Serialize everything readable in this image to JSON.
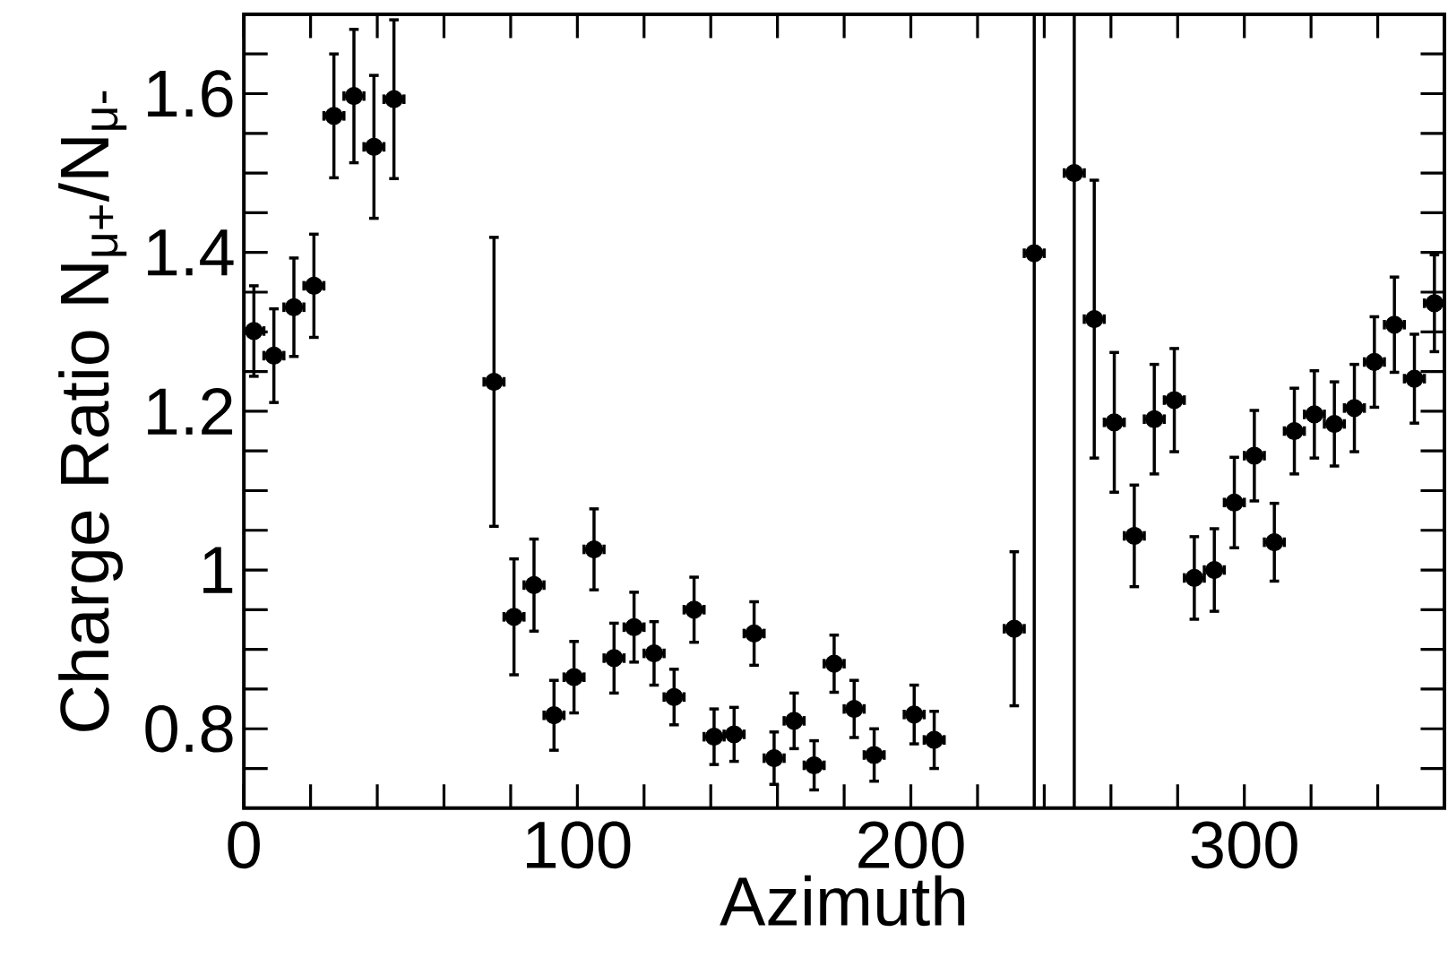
{
  "chart_data": {
    "type": "scatter",
    "xlabel": "Azimuth",
    "ylabel": "Charge Ratio N$_{μ+}$/N$_{μ-}$",
    "xlim": [
      0,
      360
    ],
    "ylim": [
      0.7,
      1.7
    ],
    "xticks": [
      0,
      {
        "value": 20,
        "label": null
      },
      {
        "value": 40,
        "label": null
      },
      {
        "value": 60,
        "label": null
      },
      {
        "value": 80,
        "label": null
      },
      100,
      {
        "value": 120,
        "label": null
      },
      {
        "value": 140,
        "label": null
      },
      {
        "value": 160,
        "label": null
      },
      {
        "value": 180,
        "label": null
      },
      200,
      {
        "value": 220,
        "label": null
      },
      {
        "value": 240,
        "label": null
      },
      {
        "value": 260,
        "label": null
      },
      {
        "value": 280,
        "label": null
      },
      300,
      {
        "value": 320,
        "label": null
      },
      {
        "value": 340,
        "label": null
      }
    ],
    "yticks": [
      {
        "value": 0.75,
        "label": null
      },
      0.8,
      {
        "value": 0.85,
        "label": null
      },
      {
        "value": 0.9,
        "label": null
      },
      {
        "value": 0.95,
        "label": null
      },
      1,
      {
        "value": 1.05,
        "label": null
      },
      {
        "value": 1.1,
        "label": null
      },
      {
        "value": 1.15,
        "label": null
      },
      1.2,
      {
        "value": 1.25,
        "label": null
      },
      {
        "value": 1.3,
        "label": null
      },
      {
        "value": 1.35,
        "label": null
      },
      1.4,
      {
        "value": 1.45,
        "label": null
      },
      {
        "value": 1.5,
        "label": null
      },
      {
        "value": 1.55,
        "label": null
      },
      1.6,
      {
        "value": 1.65,
        "label": null
      }
    ],
    "marker": "circle",
    "series": [
      {
        "color": "#000000",
        "x": [
          3,
          9,
          15,
          21,
          27,
          33,
          39,
          45,
          75,
          81,
          87,
          93,
          99,
          105,
          111,
          117,
          123,
          129,
          135,
          141,
          147,
          153,
          159,
          165,
          171,
          177,
          183,
          189,
          201,
          207,
          231,
          237,
          249,
          255,
          261,
          267,
          273,
          279,
          285,
          291,
          297,
          303,
          309,
          315,
          321,
          327,
          333,
          339,
          345,
          351,
          357
        ],
        "values": [
          1.301,
          1.27,
          1.331,
          1.358,
          1.572,
          1.597,
          1.533,
          1.593,
          1.237,
          0.941,
          0.981,
          0.817,
          0.865,
          1.026,
          0.889,
          0.928,
          0.895,
          0.84,
          0.95,
          0.79,
          0.793,
          0.92,
          0.763,
          0.81,
          0.754,
          0.882,
          0.825,
          0.767,
          0.818,
          0.786,
          0.926,
          1.399,
          1.5,
          1.316,
          1.186,
          1.043,
          1.19,
          1.214,
          0.99,
          1.0,
          1.085,
          1.144,
          1.035,
          1.175,
          1.196,
          1.184,
          1.204,
          1.262,
          1.309,
          1.241,
          1.336
        ],
        "errors": [
          0.057,
          0.059,
          0.062,
          0.065,
          0.078,
          0.084,
          0.09,
          0.1,
          0.182,
          0.073,
          0.058,
          0.044,
          0.045,
          0.051,
          0.044,
          0.044,
          0.04,
          0.035,
          0.041,
          0.035,
          0.034,
          0.04,
          0.033,
          0.035,
          0.031,
          0.036,
          0.036,
          0.033,
          0.037,
          0.036,
          0.097,
          [
            0.7,
            1.7
          ],
          [
            0.7,
            1.7
          ],
          0.175,
          0.088,
          0.064,
          0.069,
          0.065,
          0.052,
          0.052,
          0.057,
          0.057,
          0.049,
          0.054,
          0.055,
          0.053,
          0.055,
          0.057,
          0.06,
          0.056,
          0.061
        ],
        "xerrors": [
          3,
          3,
          3,
          3,
          3,
          3,
          3,
          3,
          3,
          3,
          3,
          3,
          3,
          3,
          3,
          3,
          3,
          3,
          3,
          3,
          3,
          3,
          3,
          3,
          3,
          3,
          3,
          3,
          3,
          3,
          3,
          3,
          3,
          3,
          3,
          3,
          3,
          3,
          3,
          3,
          3,
          3,
          3,
          3,
          3,
          3,
          3,
          3,
          3,
          3,
          3
        ]
      }
    ]
  }
}
